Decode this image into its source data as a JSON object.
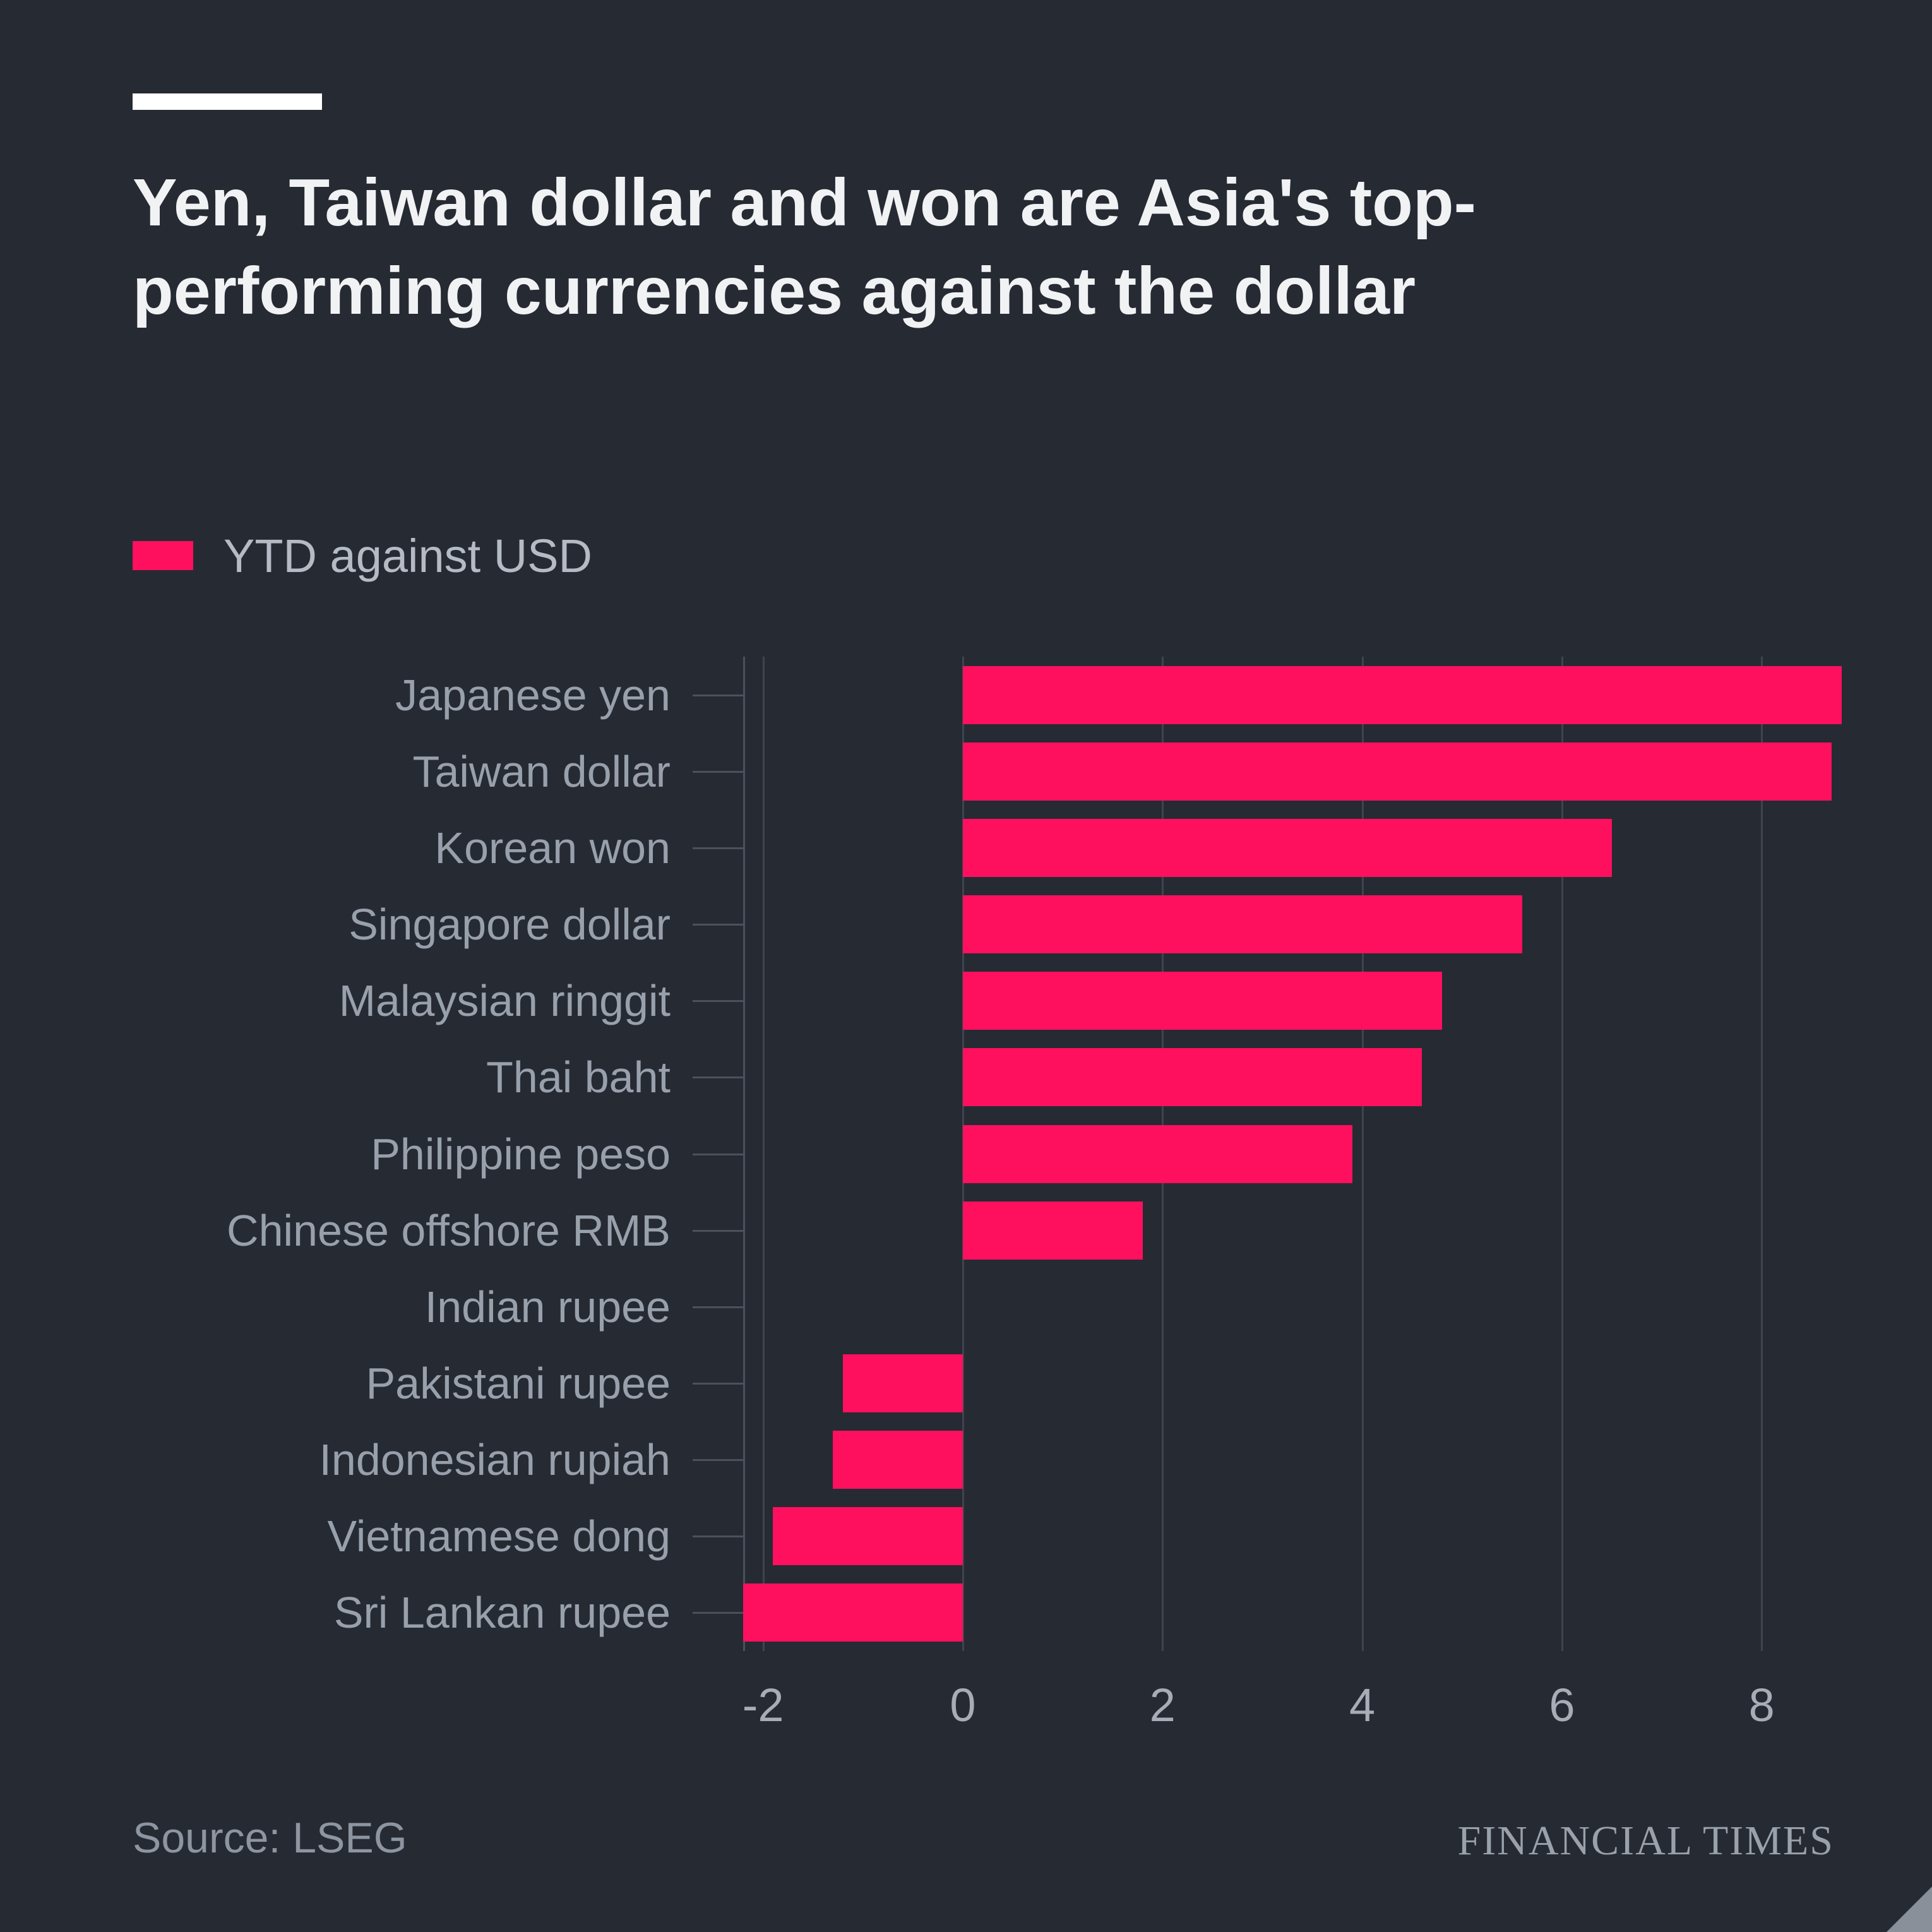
{
  "header": {
    "title": "Yen, Taiwan dollar and won are Asia's top-performing currencies against the dollar",
    "legend_label": "YTD against USD"
  },
  "footer": {
    "source": "Source: LSEG",
    "brand": "FINANCIAL TIMES"
  },
  "colors": {
    "background": "#262a33",
    "bar": "#ff105e",
    "title_text": "#f0f2f4",
    "category_text": "#98a0ab",
    "axis_text": "#a6adb7",
    "gridline": "#3e4450"
  },
  "chart_data": {
    "type": "bar",
    "orientation": "horizontal",
    "title": "Yen, Taiwan dollar and won are Asia's top-performing currencies against the dollar",
    "series_name": "YTD against USD",
    "xlabel": "",
    "ylabel": "",
    "categories": [
      "Japanese yen",
      "Taiwan dollar",
      "Korean won",
      "Singapore dollar",
      "Malaysian ringgit",
      "Thai baht",
      "Philippine peso",
      "Chinese offshore RMB",
      "Indian rupee",
      "Pakistani rupee",
      "Indonesian rupiah",
      "Vietnamese dong",
      "Sri Lankan rupee"
    ],
    "values": [
      8.8,
      8.7,
      6.5,
      5.6,
      4.8,
      4.6,
      3.9,
      1.8,
      0,
      -1.2,
      -1.3,
      -1.9,
      -2.2
    ],
    "xlim": [
      -2.2,
      9.2
    ],
    "xticks": [
      -2,
      0,
      2,
      4,
      6,
      8
    ],
    "grid": true,
    "legend_position": "top-left",
    "source": "LSEG"
  }
}
